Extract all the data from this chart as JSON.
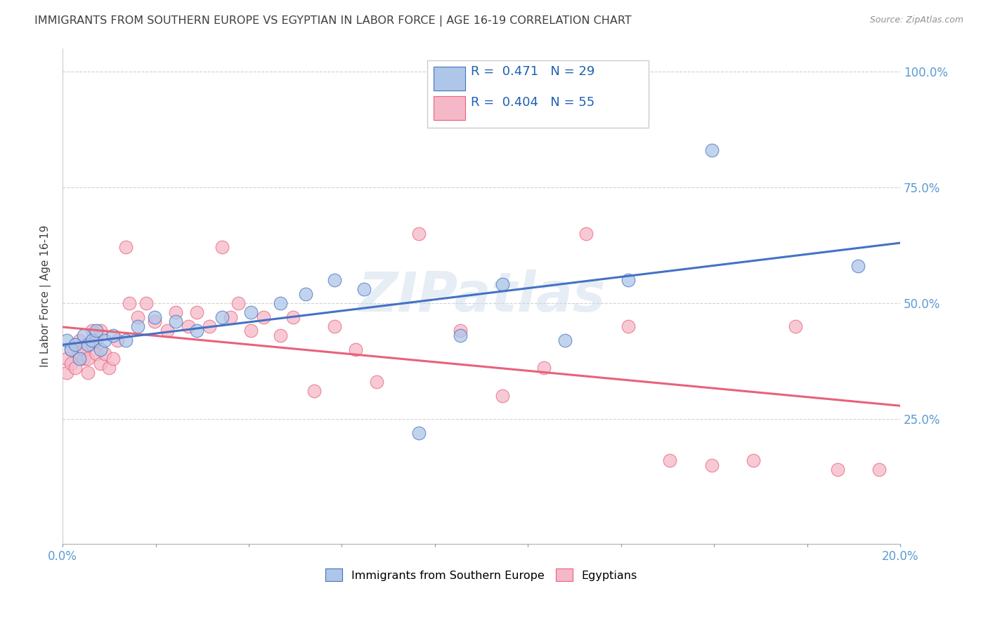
{
  "title": "IMMIGRANTS FROM SOUTHERN EUROPE VS EGYPTIAN IN LABOR FORCE | AGE 16-19 CORRELATION CHART",
  "source": "Source: ZipAtlas.com",
  "ylabel": "In Labor Force | Age 16-19",
  "xlim": [
    0.0,
    0.2
  ],
  "ylim": [
    -0.02,
    1.05
  ],
  "blue_R": 0.471,
  "blue_N": 29,
  "pink_R": 0.404,
  "pink_N": 55,
  "blue_color": "#aec6e8",
  "pink_color": "#f5b8c8",
  "blue_line_color": "#4472c4",
  "pink_line_color": "#e8627a",
  "title_color": "#404040",
  "watermark": "ZIPatlas",
  "legend_label_blue": "Immigrants from Southern Europe",
  "legend_label_pink": "Egyptians",
  "blue_scatter_x": [
    0.001,
    0.002,
    0.003,
    0.004,
    0.005,
    0.006,
    0.007,
    0.008,
    0.009,
    0.01,
    0.012,
    0.015,
    0.018,
    0.022,
    0.027,
    0.032,
    0.038,
    0.045,
    0.052,
    0.058,
    0.065,
    0.072,
    0.085,
    0.095,
    0.105,
    0.12,
    0.135,
    0.155,
    0.19
  ],
  "blue_scatter_y": [
    0.42,
    0.4,
    0.41,
    0.38,
    0.43,
    0.41,
    0.42,
    0.44,
    0.4,
    0.42,
    0.43,
    0.42,
    0.45,
    0.47,
    0.46,
    0.44,
    0.47,
    0.48,
    0.5,
    0.52,
    0.55,
    0.53,
    0.22,
    0.43,
    0.54,
    0.42,
    0.55,
    0.83,
    0.58
  ],
  "pink_scatter_x": [
    0.001,
    0.001,
    0.002,
    0.002,
    0.003,
    0.003,
    0.004,
    0.004,
    0.005,
    0.005,
    0.006,
    0.006,
    0.007,
    0.007,
    0.008,
    0.008,
    0.009,
    0.009,
    0.01,
    0.011,
    0.012,
    0.013,
    0.015,
    0.016,
    0.018,
    0.02,
    0.022,
    0.025,
    0.027,
    0.03,
    0.032,
    0.035,
    0.038,
    0.04,
    0.042,
    0.045,
    0.048,
    0.052,
    0.055,
    0.06,
    0.065,
    0.07,
    0.075,
    0.085,
    0.095,
    0.105,
    0.115,
    0.125,
    0.135,
    0.145,
    0.155,
    0.165,
    0.175,
    0.185,
    0.195
  ],
  "pink_scatter_y": [
    0.38,
    0.35,
    0.4,
    0.37,
    0.41,
    0.36,
    0.39,
    0.42,
    0.38,
    0.4,
    0.38,
    0.35,
    0.41,
    0.44,
    0.39,
    0.42,
    0.37,
    0.44,
    0.39,
    0.36,
    0.38,
    0.42,
    0.62,
    0.5,
    0.47,
    0.5,
    0.46,
    0.44,
    0.48,
    0.45,
    0.48,
    0.45,
    0.62,
    0.47,
    0.5,
    0.44,
    0.47,
    0.43,
    0.47,
    0.31,
    0.45,
    0.4,
    0.33,
    0.65,
    0.44,
    0.3,
    0.36,
    0.65,
    0.45,
    0.16,
    0.15,
    0.16,
    0.45,
    0.14,
    0.14
  ]
}
